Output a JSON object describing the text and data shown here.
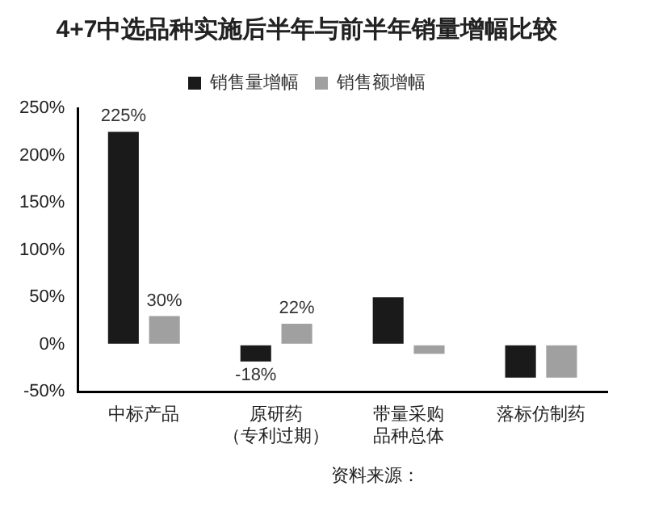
{
  "chart_data": {
    "type": "bar",
    "title": "4+7中选品种实施后半年与前半年销量增幅比较",
    "categories": [
      "中标产品",
      "原研药（专利过期）",
      "带量采购品种总体",
      "落标仿制药"
    ],
    "series": [
      {
        "name": "销售量增幅",
        "color": "#1a1a1a",
        "values": [
          225,
          -18,
          50,
          -35
        ],
        "value_labels": [
          "225%",
          "-18%",
          null,
          null
        ]
      },
      {
        "name": "销售额增幅",
        "color": "#a0a0a0",
        "values": [
          30,
          22,
          -10,
          -35
        ],
        "value_labels": [
          "30%",
          "22%",
          null,
          null
        ]
      }
    ],
    "ylim": [
      -50,
      250
    ],
    "yticks": [
      {
        "value": -50,
        "label": "-50%"
      },
      {
        "value": 0,
        "label": "0%"
      },
      {
        "value": 50,
        "label": "50%"
      },
      {
        "value": 100,
        "label": "100%"
      },
      {
        "value": 150,
        "label": "150%"
      },
      {
        "value": 200,
        "label": "200%"
      },
      {
        "value": 250,
        "label": "250%"
      }
    ],
    "grid": false,
    "legend": "top",
    "annotations": [
      "资料来源："
    ]
  }
}
